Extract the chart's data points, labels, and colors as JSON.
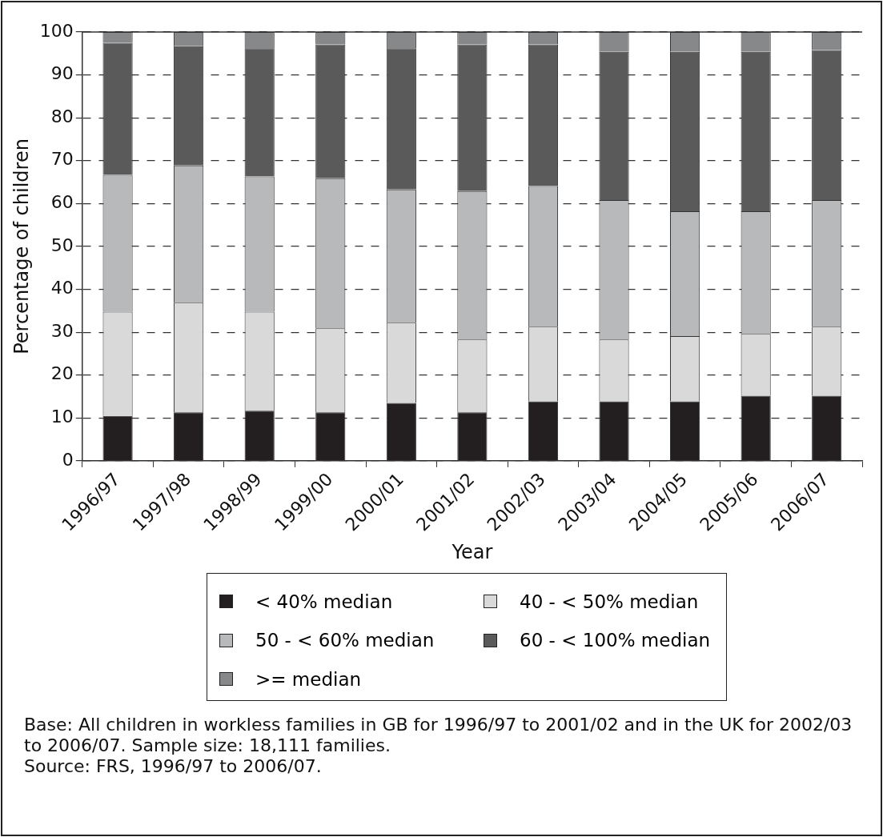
{
  "chart_data": {
    "type": "bar",
    "stacked": true,
    "xlabel": "Year",
    "ylabel": "Percentage of children",
    "categories": [
      "1996/97",
      "1997/98",
      "1998/99",
      "1999/00",
      "2000/01",
      "2001/02",
      "2002/03",
      "2003/04",
      "2004/05",
      "2005/06",
      "2006/07"
    ],
    "series": [
      {
        "name": "< 40% median",
        "color": "#231f20",
        "values": [
          10.5,
          11.3,
          11.7,
          11.3,
          13.5,
          11.3,
          13.9,
          13.9,
          13.9,
          15.2,
          15.2
        ]
      },
      {
        "name": "40 - < 50% median",
        "color": "#d9d9d9",
        "values": [
          24.3,
          25.6,
          23.1,
          19.6,
          18.7,
          17.0,
          17.4,
          14.4,
          15.2,
          14.4,
          16.1
        ]
      },
      {
        "name": "50 - < 60% median",
        "color": "#b8b9bb",
        "values": [
          31.9,
          32.0,
          31.5,
          35.0,
          31.1,
          34.6,
          32.8,
          32.5,
          29.1,
          28.6,
          29.5
        ]
      },
      {
        "name": "60 - < 100% median",
        "color": "#5a5a5a",
        "values": [
          30.8,
          27.8,
          29.9,
          31.2,
          32.9,
          34.2,
          33.0,
          34.6,
          37.2,
          37.2,
          35.0
        ]
      },
      {
        "name": ">= median",
        "color": "#87888a",
        "values": [
          2.5,
          3.3,
          3.8,
          2.9,
          3.8,
          2.9,
          2.9,
          4.6,
          4.6,
          4.6,
          4.2
        ]
      }
    ],
    "ylim": [
      0,
      100
    ],
    "yticks": [
      0,
      10,
      20,
      30,
      40,
      50,
      60,
      70,
      80,
      90,
      100
    ],
    "grid": "y",
    "legend": "bottom",
    "annotations": [
      "Base: All children in workless families in GB for 1996/97 to 2001/02 and in the UK for 2002/03 to 2006/07. Sample size: 18,111 families.",
      "Source: FRS, 1996/97 to 2006/07."
    ]
  }
}
